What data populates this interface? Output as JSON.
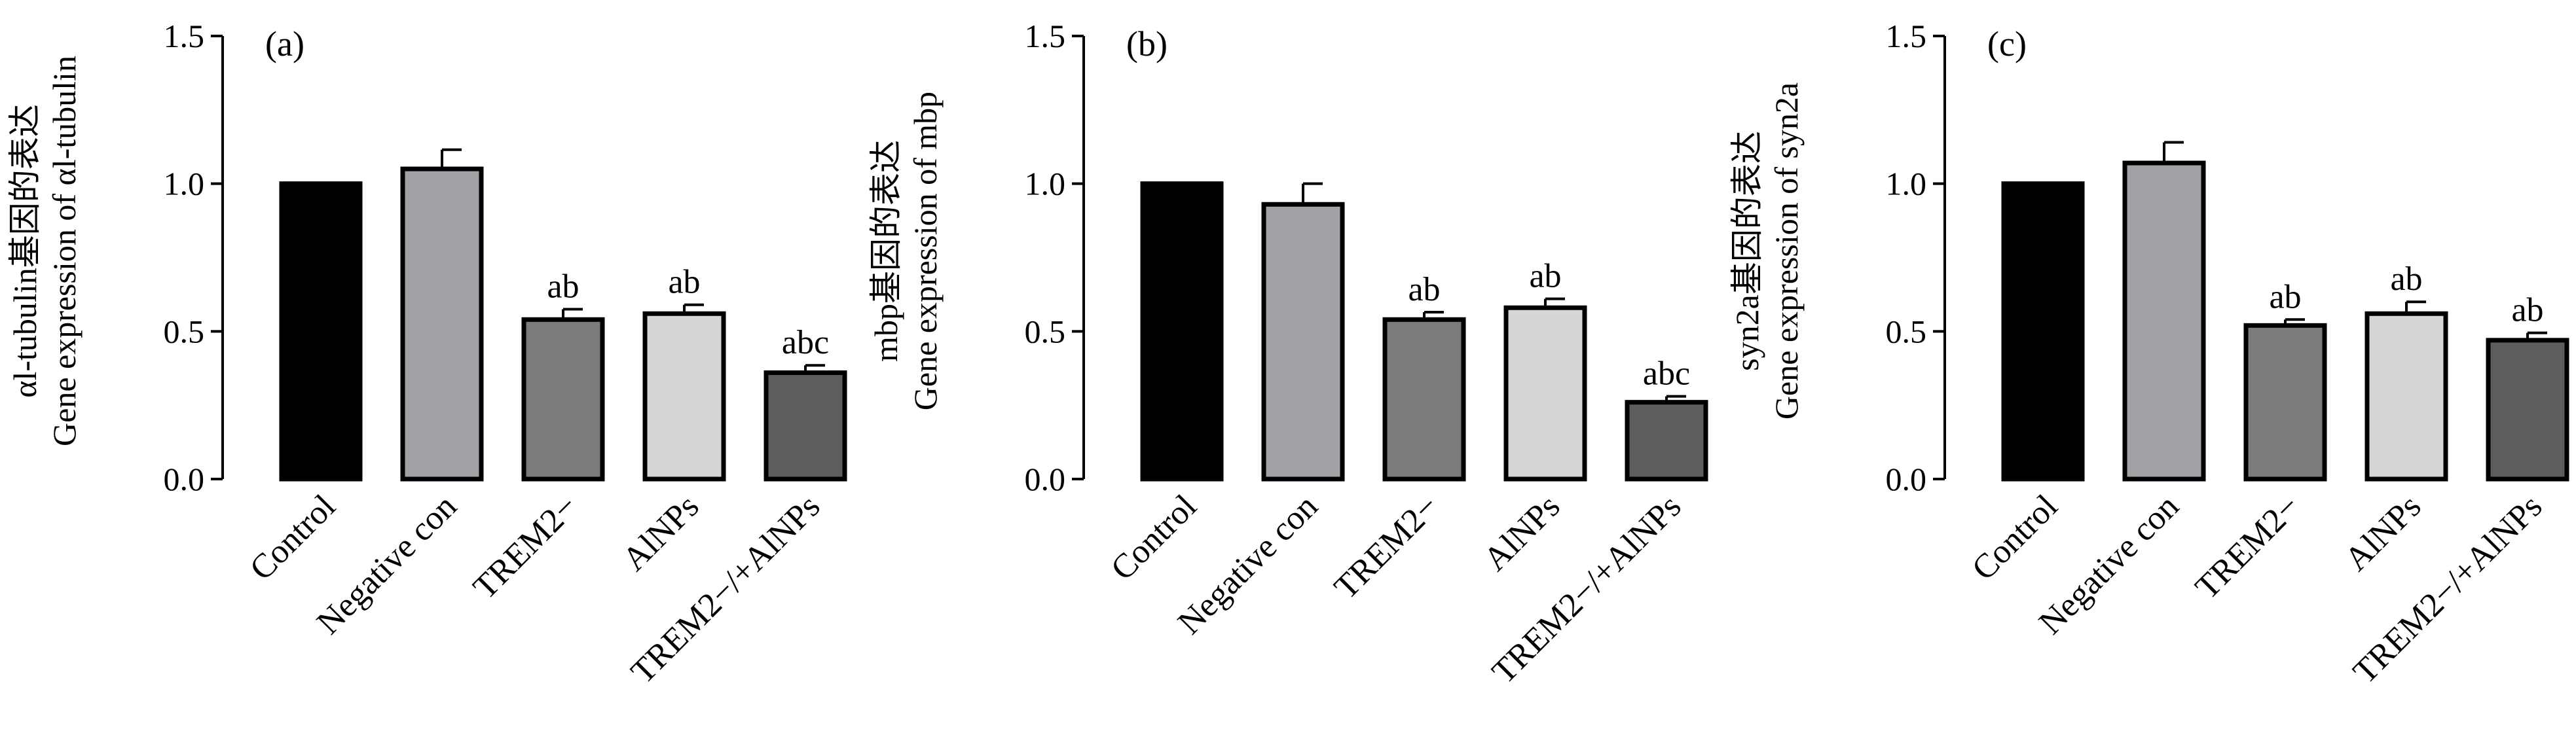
{
  "chart_data": [
    {
      "type": "bar",
      "panel_label": "(a)",
      "ylabel_line1": "αl-tubulin基因的表达",
      "ylabel_line2": "Gene expression of αl-tubulin",
      "ylim": [
        0,
        1.5
      ],
      "yticks": [
        "0.0",
        "0.5",
        "1.0",
        "1.5"
      ],
      "categories": [
        "Control",
        "Negative con",
        "TREM2−",
        "AlNPs",
        "TREM2−/+AlNPs"
      ],
      "values": [
        1.0,
        1.05,
        0.54,
        0.56,
        0.36
      ],
      "errors": [
        0,
        0.065,
        0.035,
        0.03,
        0.025
      ],
      "annotations": [
        "",
        "",
        "ab",
        "ab",
        "abc"
      ],
      "bar_colors": [
        "#000000",
        "#a2a1a6",
        "#7b7b7b",
        "#d6d6d6",
        "#5d5d5d"
      ]
    },
    {
      "type": "bar",
      "panel_label": "(b)",
      "ylabel_line1": "mbp基因的表达",
      "ylabel_line2": "Gene expression of mbp",
      "ylim": [
        0,
        1.5
      ],
      "yticks": [
        "0.0",
        "0.5",
        "1.0",
        "1.5"
      ],
      "categories": [
        "Control",
        "Negative con",
        "TREM2−",
        "AlNPs",
        "TREM2−/+AlNPs"
      ],
      "values": [
        1.0,
        0.93,
        0.54,
        0.58,
        0.26
      ],
      "errors": [
        0,
        0.07,
        0.025,
        0.03,
        0.02
      ],
      "annotations": [
        "",
        "",
        "ab",
        "ab",
        "abc"
      ],
      "bar_colors": [
        "#000000",
        "#a2a1a6",
        "#7b7b7b",
        "#d6d6d6",
        "#5d5d5d"
      ]
    },
    {
      "type": "bar",
      "panel_label": "(c)",
      "ylabel_line1": "syn2a基因的表达",
      "ylabel_line2": "Gene expression of syn2a",
      "ylim": [
        0,
        1.5
      ],
      "yticks": [
        "0.0",
        "0.5",
        "1.0",
        "1.5"
      ],
      "categories": [
        "Control",
        "Negative con",
        "TREM2−",
        "AlNPs",
        "TREM2−/+AlNPs"
      ],
      "values": [
        1.0,
        1.07,
        0.52,
        0.56,
        0.47
      ],
      "errors": [
        0,
        0.07,
        0.02,
        0.04,
        0.025
      ],
      "annotations": [
        "",
        "",
        "ab",
        "ab",
        "ab"
      ],
      "bar_colors": [
        "#000000",
        "#a2a1a6",
        "#7b7b7b",
        "#d6d6d6",
        "#5d5d5d"
      ]
    }
  ]
}
